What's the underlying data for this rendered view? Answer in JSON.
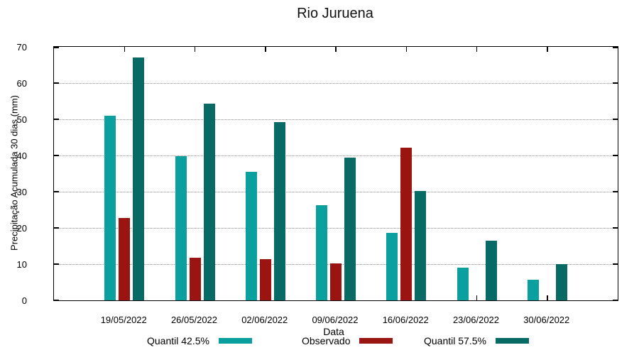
{
  "title": "Rio Juruena",
  "chart_data": {
    "type": "bar",
    "title": "Rio Juruena",
    "xlabel": "Data",
    "ylabel": "Precipitação Acumulada 30 dias (mm)",
    "ylim": [
      0,
      70
    ],
    "yticks": [
      0,
      10,
      20,
      30,
      40,
      50,
      60,
      70
    ],
    "grid": true,
    "legend_position": "bottom",
    "categories": [
      "19/05/2022",
      "26/05/2022",
      "02/06/2022",
      "09/06/2022",
      "16/06/2022",
      "23/06/2022",
      "30/06/2022"
    ],
    "series": [
      {
        "name": "Quantil 42.5%",
        "color": "#0AA0A0",
        "values": [
          51.0,
          39.8,
          35.5,
          26.3,
          18.6,
          9.1,
          5.6
        ]
      },
      {
        "name": "Observado",
        "color": "#9A1412",
        "values": [
          22.8,
          11.7,
          11.3,
          10.2,
          42.1,
          null,
          null
        ]
      },
      {
        "name": "Quantil 57.5%",
        "color": "#086A64",
        "values": [
          67.0,
          54.4,
          49.2,
          39.4,
          30.2,
          16.5,
          10.1
        ]
      }
    ],
    "legend_x_positions": [
      207,
      425,
      597
    ]
  }
}
